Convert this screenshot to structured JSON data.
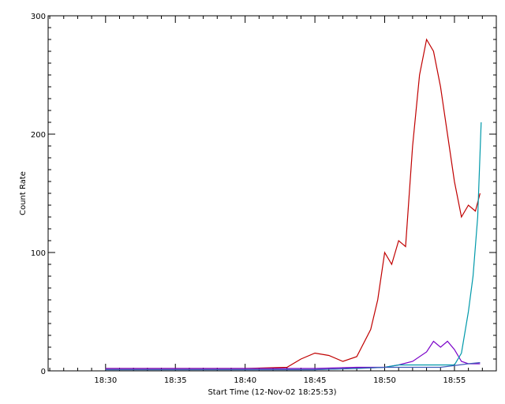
{
  "chart_data": {
    "type": "line",
    "title": "",
    "xlabel": "Start Time (12-Nov-02 18:25:53)",
    "ylabel": "Count Rate",
    "xlim": [
      "18:25:53",
      "18:58:00"
    ],
    "ylim": [
      0,
      300
    ],
    "x_ticks": [
      "18:30",
      "18:35",
      "18:40",
      "18:45",
      "18:50",
      "18:55"
    ],
    "y_ticks": [
      0,
      100,
      200,
      300
    ],
    "grid": false,
    "legend": "none",
    "series": [
      {
        "color": "#c00000",
        "x": [
          "18:30:00",
          "18:35:00",
          "18:40:00",
          "18:43:00",
          "18:44:00",
          "18:45:00",
          "18:46:00",
          "18:47:00",
          "18:48:00",
          "18:49:00",
          "18:49:30",
          "18:50:00",
          "18:50:30",
          "18:51:00",
          "18:51:30",
          "18:52:00",
          "18:52:30",
          "18:53:00",
          "18:53:30",
          "18:54:00",
          "18:54:30",
          "18:55:00",
          "18:55:30",
          "18:56:00",
          "18:56:30",
          "18:56:50"
        ],
        "y": [
          2,
          2,
          2,
          3,
          10,
          15,
          13,
          8,
          12,
          35,
          60,
          100,
          90,
          110,
          105,
          190,
          250,
          280,
          270,
          240,
          200,
          160,
          130,
          140,
          135,
          150
        ]
      },
      {
        "color": "#7a00c8",
        "x": [
          "18:30:00",
          "18:35:00",
          "18:40:00",
          "18:45:00",
          "18:48:00",
          "18:50:00",
          "18:51:00",
          "18:52:00",
          "18:53:00",
          "18:53:30",
          "18:54:00",
          "18:54:30",
          "18:55:00",
          "18:55:30",
          "18:56:00",
          "18:56:50"
        ],
        "y": [
          2,
          2,
          2,
          2,
          3,
          3,
          5,
          8,
          16,
          25,
          20,
          25,
          18,
          8,
          6,
          6
        ]
      },
      {
        "color": "#0099aa",
        "x": [
          "18:30:00",
          "18:35:00",
          "18:40:00",
          "18:45:00",
          "18:48:00",
          "18:50:00",
          "18:51:00",
          "18:52:00",
          "18:53:00",
          "18:54:00",
          "18:55:00",
          "18:55:30",
          "18:56:00",
          "18:56:20",
          "18:56:40",
          "18:56:55"
        ],
        "y": [
          1,
          1,
          1,
          1,
          2,
          3,
          5,
          5,
          5,
          5,
          5,
          15,
          50,
          80,
          130,
          210
        ]
      },
      {
        "color": "#3f5bb8",
        "x": [
          "18:30:00",
          "18:35:00",
          "18:40:00",
          "18:45:00",
          "18:50:00",
          "18:52:00",
          "18:54:00",
          "18:56:00",
          "18:56:50"
        ],
        "y": [
          1,
          1,
          1,
          1,
          3,
          3,
          3,
          6,
          7
        ]
      }
    ]
  }
}
